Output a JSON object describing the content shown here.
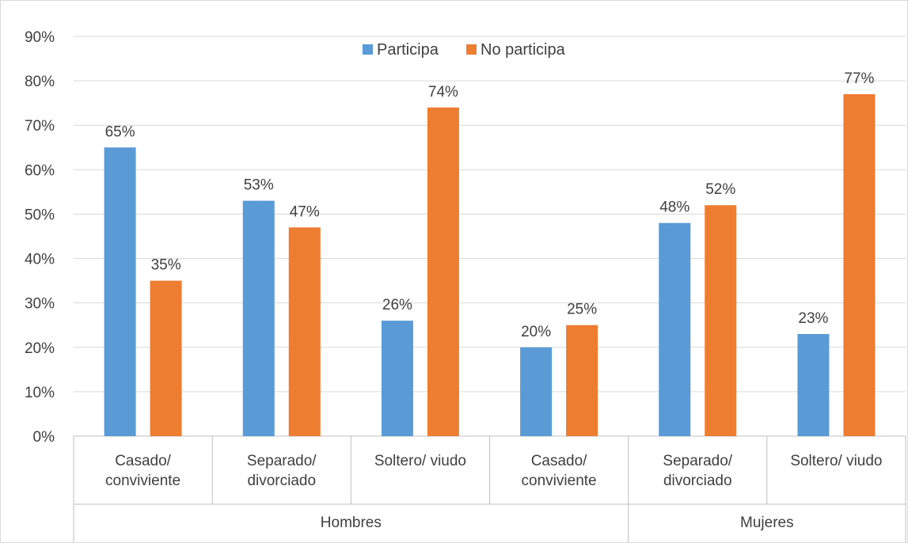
{
  "chart_data": {
    "type": "bar",
    "legend": {
      "placement": "top-center"
    },
    "grid": true,
    "ylim": [
      0,
      0.9
    ],
    "yticks": [
      "0%",
      "10%",
      "20%",
      "30%",
      "40%",
      "50%",
      "60%",
      "70%",
      "80%",
      "90%"
    ],
    "series": [
      {
        "name": "Participa",
        "color": "#5b9bd5",
        "values": [
          0.65,
          0.53,
          0.26,
          0.2,
          0.48,
          0.23
        ],
        "labels": [
          "65%",
          "53%",
          "26%",
          "20%",
          "48%",
          "23%"
        ]
      },
      {
        "name": "No participa",
        "color": "#ed7d31",
        "values": [
          0.35,
          0.47,
          0.74,
          0.25,
          0.52,
          0.77
        ],
        "labels": [
          "35%",
          "47%",
          "74%",
          "25%",
          "52%",
          "77%"
        ]
      }
    ],
    "categories": [
      [
        "Casado/",
        "conviviente"
      ],
      [
        "Separado/",
        "divorciado"
      ],
      [
        "Soltero/ viudo"
      ],
      [
        "Casado/",
        "conviviente"
      ],
      [
        "Separado/",
        "divorciado"
      ],
      [
        "Soltero/ viudo"
      ]
    ],
    "groups": [
      {
        "label": "Hombres",
        "span": 4
      },
      {
        "label": "Mujeres",
        "span": 2
      }
    ]
  }
}
